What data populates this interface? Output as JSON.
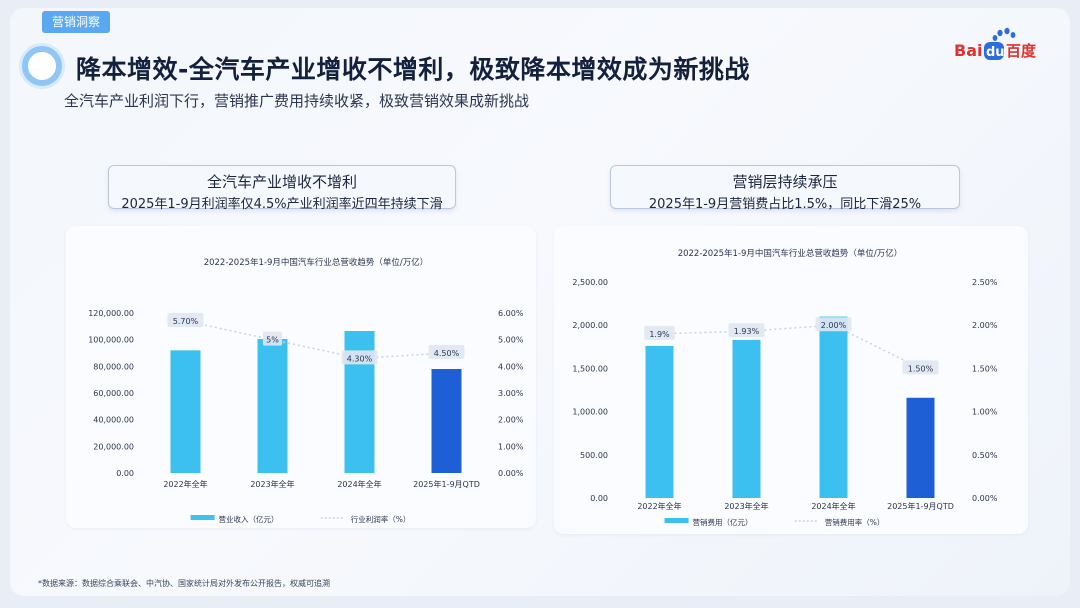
{
  "header": {
    "section_tag": "营销洞察",
    "title": "降本增效-全汽车产业增收不增利，极致降本增效成为新挑战",
    "subtitle": "全汽车产业利润下行，营销推广费用持续收紧，极致营销效果成新挑战",
    "logo_text_left": "Bai",
    "logo_text_mid": "du",
    "logo_text_right": "百度"
  },
  "colors": {
    "bar": "#3cc0ef",
    "bar_highlight": "#1f5fd6",
    "line": "#c9d2de",
    "accent": "#5aa9f0"
  },
  "left_panel": {
    "box_title": "全汽车产业增收不增利",
    "box_subtitle": "2025年1-9月利润率仅4.5%产业利润率近四年持续下滑"
  },
  "right_panel": {
    "box_title": "营销层持续承压",
    "box_subtitle": "2025年1-9月营销费占比1.5%，同比下滑25%"
  },
  "footnote": "*数据来源：数据综合乘联会、中汽协、国家统计局对外发布公开报告，权威可追溯",
  "chart_data": [
    {
      "type": "bar",
      "title": "2022-2025年1-9月中国汽车行业总营收趋势（单位/万亿）",
      "categories": [
        "2022年全年",
        "2023年全年",
        "2024年全年",
        "2025年1-9月QTD"
      ],
      "series": [
        {
          "name": "营业收入（亿元）",
          "type": "bar",
          "values": [
            92000,
            100500,
            106500,
            78000
          ],
          "highlight_last": true
        },
        {
          "name": "行业利润率（%）",
          "type": "line",
          "axis": "right",
          "values": [
            5.7,
            5.0,
            4.3,
            4.5
          ],
          "labels": [
            "5.70%",
            "5%",
            "4.30%",
            "4.50%"
          ]
        }
      ],
      "ylim": [
        0,
        120000
      ],
      "yticks": [
        "0.00",
        "20,000.00",
        "40,000.00",
        "60,000.00",
        "80,000.00",
        "100,000.00",
        "120,000.00"
      ],
      "y2lim": [
        0,
        6
      ],
      "y2ticks": [
        "0.00%",
        "1.00%",
        "2.00%",
        "3.00%",
        "4.00%",
        "5.00%",
        "6.00%"
      ],
      "legend_position": "bottom",
      "grid": false
    },
    {
      "type": "bar",
      "title": "2022-2025年1-9月中国汽车行业总营收趋势（单位/万亿）",
      "categories": [
        "2022年全年",
        "2023年全年",
        "2024年全年",
        "2025年1-9月QTD"
      ],
      "series": [
        {
          "name": "营销费用（亿元）",
          "type": "bar",
          "values": [
            1760,
            1830,
            2100,
            1160
          ],
          "highlight_last": true
        },
        {
          "name": "营销费用率（%）",
          "type": "line",
          "axis": "right",
          "values": [
            1.9,
            1.93,
            2.0,
            1.5
          ],
          "labels": [
            "1.9%",
            "1.93%",
            "2.00%",
            "1.50%"
          ]
        }
      ],
      "ylim": [
        0,
        2500
      ],
      "yticks": [
        "0.00",
        "500.00",
        "1,000.00",
        "1,500.00",
        "2,000.00",
        "2,500.00"
      ],
      "y2lim": [
        0,
        2.5
      ],
      "y2ticks": [
        "0.00%",
        "0.50%",
        "1.00%",
        "1.50%",
        "2.00%",
        "2.50%"
      ],
      "legend_position": "bottom",
      "grid": false
    }
  ]
}
